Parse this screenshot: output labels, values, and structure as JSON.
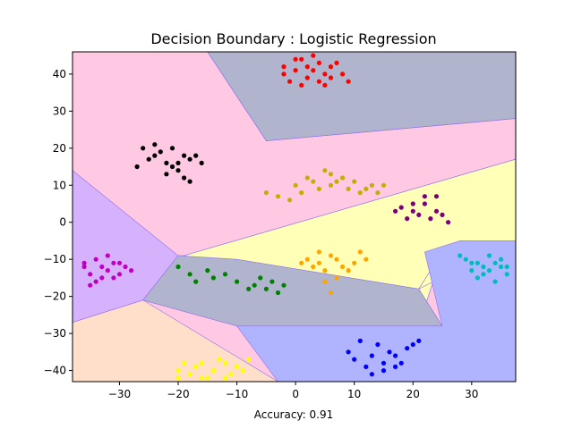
{
  "chart_data": {
    "type": "scatter",
    "title": "Decision Boundary : Logistic Regression",
    "xlabel": "Accuracy: 0.91",
    "ylabel": "",
    "xlim": [
      -38,
      37.5
    ],
    "ylim": [
      -43,
      46
    ],
    "xticks": [
      -30,
      -20,
      -10,
      0,
      10,
      20,
      30
    ],
    "yticks": [
      -40,
      -30,
      -20,
      -10,
      0,
      10,
      20,
      30,
      40
    ],
    "grid": false,
    "legend": "none",
    "regions": [
      {
        "color": "#ffc9e3",
        "polygon": [
          [
            -38,
            46
          ],
          [
            -15,
            46
          ],
          [
            -5,
            22
          ],
          [
            37.5,
            28
          ],
          [
            37.5,
            17
          ],
          [
            -19,
            -9
          ],
          [
            -20,
            -9
          ],
          [
            -38,
            -8
          ]
        ]
      },
      {
        "color": "#b0b4cc",
        "polygon": [
          [
            -15,
            46
          ],
          [
            37.5,
            46
          ],
          [
            37.5,
            28
          ],
          [
            -5,
            22
          ]
        ]
      },
      {
        "color": "#d7b2fc",
        "polygon": [
          [
            -38,
            14
          ],
          [
            -20,
            -9
          ],
          [
            -26,
            -21
          ],
          [
            -38,
            -27
          ]
        ]
      },
      {
        "color": "#ffffb8",
        "polygon": [
          [
            -19,
            -9
          ],
          [
            37.5,
            17
          ],
          [
            37.5,
            -5
          ],
          [
            21,
            -18
          ],
          [
            25,
            -8
          ],
          [
            22,
            -23
          ]
        ]
      },
      {
        "color": "#b0b4cc",
        "polygon": [
          [
            -20,
            -9
          ],
          [
            -10,
            -10
          ],
          [
            21,
            -18
          ],
          [
            25,
            -28
          ],
          [
            -10,
            -28
          ],
          [
            -26,
            -21
          ]
        ]
      },
      {
        "color": "#b0b4ff",
        "polygon": [
          [
            37.5,
            -5
          ],
          [
            37.5,
            -43
          ],
          [
            -3,
            -43
          ],
          [
            -10,
            -28
          ],
          [
            25,
            -28
          ],
          [
            22,
            -8
          ],
          [
            28,
            -5
          ]
        ]
      },
      {
        "color": "#ffdfc9",
        "polygon": [
          [
            -38,
            -27
          ],
          [
            -26,
            -21
          ],
          [
            -3,
            -43
          ],
          [
            -38,
            -43
          ]
        ]
      }
    ],
    "series": [
      {
        "color": "#ff0000",
        "points": [
          [
            -2,
            40
          ],
          [
            0,
            44
          ],
          [
            2,
            42
          ],
          [
            4,
            38
          ],
          [
            6,
            42
          ],
          [
            3,
            45
          ],
          [
            -1,
            38
          ],
          [
            5,
            40
          ],
          [
            7,
            43
          ],
          [
            1,
            37
          ],
          [
            3,
            41
          ],
          [
            6,
            39
          ],
          [
            0,
            41
          ],
          [
            4,
            43
          ],
          [
            2,
            39
          ],
          [
            -2,
            42
          ],
          [
            8,
            40
          ],
          [
            1,
            44
          ],
          [
            5,
            37
          ],
          [
            9,
            38
          ]
        ]
      },
      {
        "color": "#000000",
        "points": [
          [
            -26,
            20
          ],
          [
            -24,
            18
          ],
          [
            -22,
            16
          ],
          [
            -20,
            14
          ],
          [
            -18,
            17
          ],
          [
            -25,
            17
          ],
          [
            -21,
            20
          ],
          [
            -19,
            12
          ],
          [
            -17,
            18
          ],
          [
            -23,
            19
          ],
          [
            -20,
            16
          ],
          [
            -27,
            15
          ],
          [
            -18,
            11
          ],
          [
            -22,
            13
          ],
          [
            -16,
            16
          ],
          [
            -24,
            21
          ],
          [
            -19,
            18
          ],
          [
            -21,
            15
          ]
        ]
      },
      {
        "color": "#c0b000",
        "points": [
          [
            -5,
            8
          ],
          [
            -3,
            7
          ],
          [
            0,
            10
          ],
          [
            2,
            12
          ],
          [
            5,
            14
          ],
          [
            7,
            11
          ],
          [
            9,
            9
          ],
          [
            11,
            8
          ],
          [
            13,
            10
          ],
          [
            4,
            9
          ],
          [
            6,
            13
          ],
          [
            8,
            12
          ],
          [
            -1,
            6
          ],
          [
            3,
            11
          ],
          [
            10,
            11
          ],
          [
            12,
            9
          ],
          [
            14,
            8
          ],
          [
            15,
            10
          ],
          [
            1,
            8
          ],
          [
            6,
            10
          ]
        ]
      },
      {
        "color": "#7a0077",
        "points": [
          [
            18,
            4
          ],
          [
            20,
            3
          ],
          [
            22,
            5
          ],
          [
            24,
            7
          ],
          [
            19,
            1
          ],
          [
            21,
            2
          ],
          [
            23,
            1
          ],
          [
            25,
            2
          ],
          [
            26,
            0
          ],
          [
            20,
            5
          ],
          [
            22,
            7
          ],
          [
            17,
            3
          ],
          [
            24,
            3
          ]
        ]
      },
      {
        "color": "#c000c0",
        "points": [
          [
            -36,
            -12
          ],
          [
            -34,
            -10
          ],
          [
            -32,
            -13
          ],
          [
            -30,
            -14
          ],
          [
            -33,
            -15
          ],
          [
            -35,
            -14
          ],
          [
            -31,
            -11
          ],
          [
            -29,
            -12
          ],
          [
            -34,
            -16
          ],
          [
            -32,
            -9
          ],
          [
            -36,
            -11
          ],
          [
            -33,
            -12
          ],
          [
            -30,
            -11
          ],
          [
            -35,
            -17
          ],
          [
            -31,
            -15
          ],
          [
            -28,
            -13
          ]
        ]
      },
      {
        "color": "#00bcbc",
        "points": [
          [
            29,
            -10
          ],
          [
            31,
            -11
          ],
          [
            33,
            -9
          ],
          [
            35,
            -12
          ],
          [
            30,
            -13
          ],
          [
            32,
            -14
          ],
          [
            34,
            -11
          ],
          [
            36,
            -14
          ],
          [
            28,
            -9
          ],
          [
            31,
            -15
          ],
          [
            33,
            -13
          ],
          [
            35,
            -10
          ],
          [
            30,
            -11
          ],
          [
            32,
            -12
          ],
          [
            34,
            -16
          ],
          [
            36,
            -12
          ]
        ]
      },
      {
        "color": "#ffa500",
        "points": [
          [
            2,
            -10
          ],
          [
            4,
            -11
          ],
          [
            5,
            -13
          ],
          [
            7,
            -15
          ],
          [
            9,
            -13
          ],
          [
            10,
            -11
          ],
          [
            11,
            -8
          ],
          [
            6,
            -9
          ],
          [
            3,
            -12
          ],
          [
            8,
            -12
          ],
          [
            5,
            -16
          ],
          [
            6,
            -19
          ],
          [
            12,
            -10
          ],
          [
            4,
            -8
          ],
          [
            1,
            -11
          ],
          [
            7,
            -10
          ]
        ]
      },
      {
        "color": "#008000",
        "points": [
          [
            -20,
            -12
          ],
          [
            -18,
            -14
          ],
          [
            -17,
            -16
          ],
          [
            -14,
            -15
          ],
          [
            -10,
            -16
          ],
          [
            -7,
            -17
          ],
          [
            -5,
            -18
          ],
          [
            -3,
            -19
          ],
          [
            -6,
            -15
          ],
          [
            -4,
            -16
          ],
          [
            -8,
            -18
          ],
          [
            -2,
            -17
          ],
          [
            -12,
            -14
          ],
          [
            -15,
            -13
          ]
        ]
      },
      {
        "color": "#0000ff",
        "points": [
          [
            9,
            -35
          ],
          [
            10,
            -37
          ],
          [
            12,
            -39
          ],
          [
            13,
            -41
          ],
          [
            15,
            -38
          ],
          [
            17,
            -36
          ],
          [
            19,
            -34
          ],
          [
            20,
            -33
          ],
          [
            16,
            -35
          ],
          [
            14,
            -33
          ],
          [
            18,
            -38
          ],
          [
            11,
            -32
          ],
          [
            13,
            -36
          ],
          [
            21,
            -32
          ],
          [
            15,
            -40
          ],
          [
            17,
            -39
          ]
        ]
      },
      {
        "color": "#ffff00",
        "points": [
          [
            -20,
            -40
          ],
          [
            -18,
            -41
          ],
          [
            -16,
            -42
          ],
          [
            -14,
            -40
          ],
          [
            -12,
            -38
          ],
          [
            -10,
            -39
          ],
          [
            -8,
            -37
          ],
          [
            -19,
            -38
          ],
          [
            -17,
            -39
          ],
          [
            -15,
            -42
          ],
          [
            -11,
            -41
          ],
          [
            -9,
            -40
          ],
          [
            -13,
            -37
          ],
          [
            -16,
            -38
          ],
          [
            -20,
            -42
          ],
          [
            -12,
            -42
          ]
        ]
      }
    ]
  }
}
